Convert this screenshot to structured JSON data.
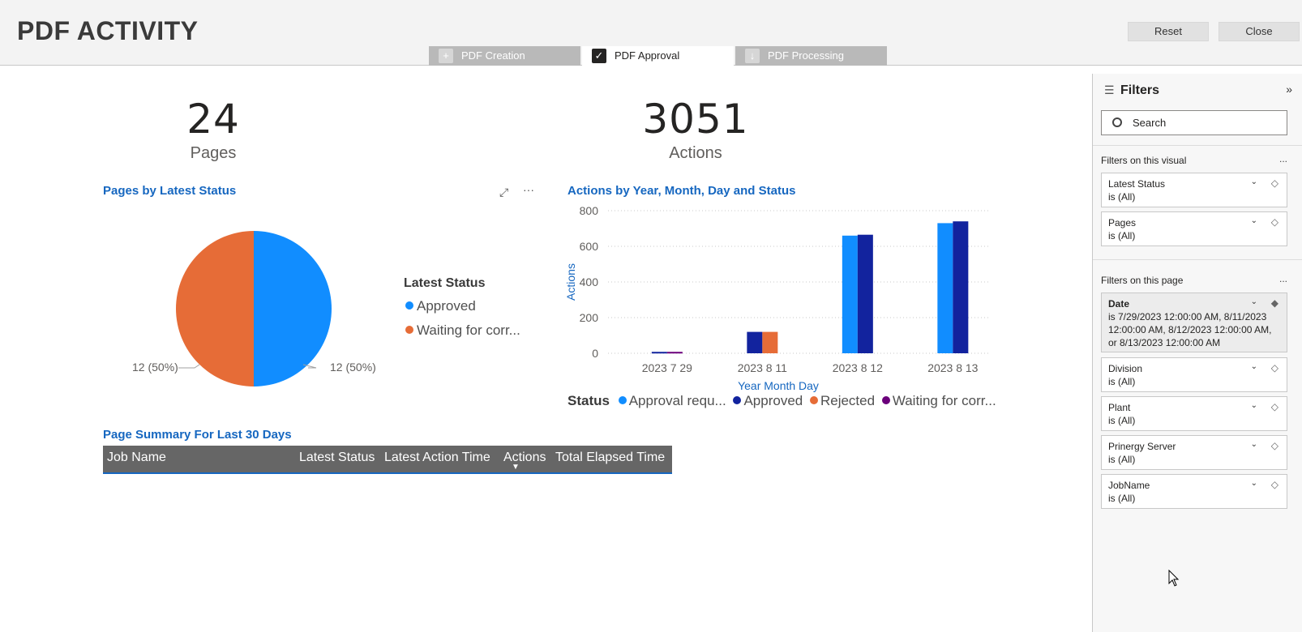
{
  "header": {
    "title": "PDF ACTIVITY",
    "reset_label": "Reset",
    "close_label": "Close",
    "tabs": [
      {
        "label": "PDF Creation",
        "icon": "plus-icon",
        "state": "inactive"
      },
      {
        "label": "PDF Approval",
        "icon": "clipboard-check-icon",
        "state": "active"
      },
      {
        "label": "PDF Processing",
        "icon": "download-icon",
        "state": "inactive"
      }
    ]
  },
  "kpis": [
    {
      "value": "24",
      "label": "Pages"
    },
    {
      "value": "3051",
      "label": "Actions"
    }
  ],
  "pie_visual": {
    "title": "Pages by Latest Status",
    "legend_title": "Latest Status",
    "legend": [
      "Approved",
      "Waiting for corr..."
    ],
    "label_left": "12 (50%)",
    "label_right": "12 (50%)"
  },
  "bar_visual": {
    "title": "Actions by Year, Month, Day and Status",
    "legend_title": "Status",
    "legend": [
      "Approval requ...",
      "Approved",
      "Rejected",
      "Waiting for corr..."
    ]
  },
  "table_visual": {
    "title": "Page Summary For Last 30 Days",
    "columns": [
      "Job Name",
      "Latest Status",
      "Latest Action Time",
      "Actions",
      "Total Elapsed Time"
    ]
  },
  "filters": {
    "title": "Filters",
    "search_placeholder": "Search",
    "visual_section": "Filters on this visual",
    "page_section": "Filters on this page",
    "more": "...",
    "visual_filters": [
      {
        "name": "Latest Status",
        "value": "is (All)"
      },
      {
        "name": "Pages",
        "value": "is (All)"
      }
    ],
    "page_filters": [
      {
        "name": "Date",
        "value": "is 7/29/2023 12:00:00 AM, 8/11/2023 12:00:00 AM, 8/12/2023 12:00:00 AM, or 8/13/2023 12:00:00 AM"
      },
      {
        "name": "Division",
        "value": "is (All)"
      },
      {
        "name": "Plant",
        "value": "is (All)"
      },
      {
        "name": "Prinergy Server",
        "value": "is (All)"
      },
      {
        "name": "JobName",
        "value": "is (All)"
      }
    ]
  },
  "colors": {
    "approval_requested": "#118dff",
    "approved": "#12239e",
    "rejected": "#e66c37",
    "waiting": "#6b007b",
    "title_blue": "#1667c0"
  },
  "chart_data": [
    {
      "type": "pie",
      "title": "Pages by Latest Status",
      "legend_title": "Latest Status",
      "categories": [
        "Approved",
        "Waiting for corr..."
      ],
      "values": [
        12,
        12
      ],
      "colors": [
        "#118dff",
        "#e66c37"
      ],
      "data_labels": [
        "12 (50%)",
        "12 (50%)"
      ]
    },
    {
      "type": "bar",
      "title": "Actions by Year, Month, Day and Status",
      "xlabel": "Year Month Day",
      "ylabel": "Actions",
      "ylim": [
        0,
        800
      ],
      "yticks": [
        0,
        200,
        400,
        600,
        800
      ],
      "grid": true,
      "legend_position": "bottom",
      "categories": [
        "2023 7 29",
        "2023 8 11",
        "2023 8 12",
        "2023 8 13"
      ],
      "series": [
        {
          "name": "Approval requ...",
          "color": "#118dff",
          "values": [
            null,
            null,
            660,
            730
          ]
        },
        {
          "name": "Approved",
          "color": "#12239e",
          "values": [
            8,
            120,
            665,
            740
          ]
        },
        {
          "name": "Rejected",
          "color": "#e66c37",
          "values": [
            null,
            120,
            null,
            null
          ]
        },
        {
          "name": "Waiting for corr...",
          "color": "#6b007b",
          "values": [
            8,
            null,
            null,
            null
          ]
        }
      ]
    }
  ]
}
